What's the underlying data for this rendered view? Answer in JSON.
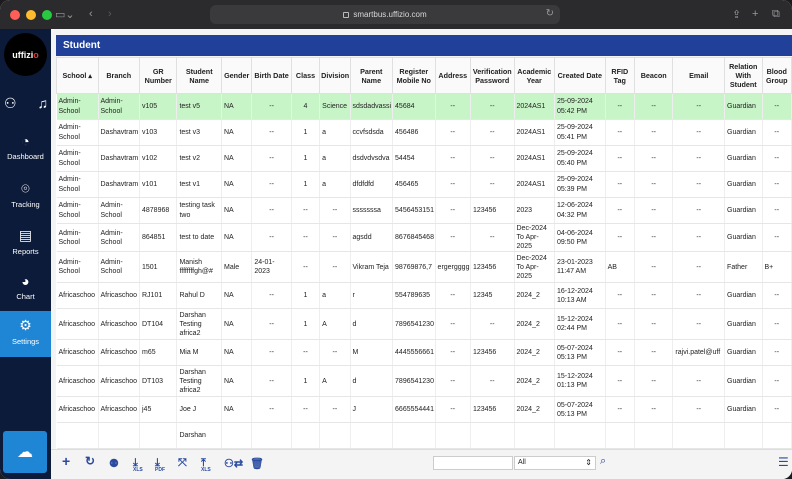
{
  "browser": {
    "url": "smartbus.uffizio.com"
  },
  "logo": {
    "text_main": "uffizi",
    "text_accent": "o"
  },
  "sidebar": {
    "items": [
      {
        "label": "Dashboard"
      },
      {
        "label": "Tracking"
      },
      {
        "label": "Reports"
      },
      {
        "label": "Chart"
      },
      {
        "label": "Settings"
      }
    ]
  },
  "panel": {
    "title": "Student"
  },
  "table": {
    "headers": [
      "School ▴",
      "Branch",
      "GR Number",
      "Student Name",
      "Gender",
      "Birth Date",
      "Class",
      "Division",
      "Parent Name",
      "Register Mobile No",
      "Address",
      "Verification Password",
      "Academic Year",
      "Created Date",
      "RFID Tag",
      "Beacon",
      "Email",
      "Relation With Student",
      "Blood Group"
    ],
    "rows": [
      [
        "Admin-School",
        "Admin-School",
        "v105",
        "test v5",
        "NA",
        "--",
        "4",
        "Science",
        "sdsdadvassi",
        "45684",
        "--",
        "--",
        "2024AS1",
        "25-09-2024 05:42 PM",
        "--",
        "--",
        "--",
        "Guardian",
        "--"
      ],
      [
        "Admin-School",
        "Dashavtram",
        "v103",
        "test v3",
        "NA",
        "--",
        "1",
        "a",
        "ccvfsdsda",
        "456486",
        "--",
        "--",
        "2024AS1",
        "25-09-2024 05:41 PM",
        "--",
        "--",
        "--",
        "Guardian",
        "--"
      ],
      [
        "Admin-School",
        "Dashavtram",
        "v102",
        "test v2",
        "NA",
        "--",
        "1",
        "a",
        "dsdvdvsdva",
        "54454",
        "--",
        "--",
        "2024AS1",
        "25-09-2024 05:40 PM",
        "--",
        "--",
        "--",
        "Guardian",
        "--"
      ],
      [
        "Admin-School",
        "Dashavtram",
        "v101",
        "test v1",
        "NA",
        "--",
        "1",
        "a",
        "dfdfdfd",
        "456465",
        "--",
        "--",
        "2024AS1",
        "25-09-2024 05:39 PM",
        "--",
        "--",
        "--",
        "Guardian",
        "--"
      ],
      [
        "Admin-School",
        "Admin-School",
        "4878968",
        "testing task two",
        "NA",
        "--",
        "--",
        "--",
        "sssssssa",
        "5456453151",
        "--",
        "123456",
        "2023",
        "12-06-2024 04:32 PM",
        "--",
        "--",
        "--",
        "Guardian",
        "--"
      ],
      [
        "Admin-School",
        "Admin-School",
        "864851",
        "test to date",
        "NA",
        "--",
        "--",
        "--",
        "agsdd",
        "8676845468",
        "--",
        "--",
        "Dec-2024 To Apr-2025",
        "04-06-2024 09:50 PM",
        "--",
        "--",
        "--",
        "Guardian",
        "--"
      ],
      [
        "Admin-School",
        "Admin-School",
        "1501",
        "Manish ffffffffgh@#",
        "Male",
        "24-01-2023",
        "--",
        "--",
        "Vikram Teja",
        "98769876,7",
        "ergergggg",
        "123456",
        "Dec-2024 To Apr-2025",
        "23-01-2023 11:47 AM",
        "AB",
        "--",
        "--",
        "Father",
        "B+"
      ],
      [
        "Africaschoo",
        "Africaschoo",
        "RJ101",
        "Rahul D",
        "NA",
        "--",
        "1",
        "a",
        "r",
        "554789635",
        "--",
        "12345",
        "2024_2",
        "16-12-2024 10:13 AM",
        "--",
        "--",
        "--",
        "Guardian",
        "--"
      ],
      [
        "Africaschoo",
        "Africaschoo",
        "DT104",
        "Darshan Testing africa2",
        "NA",
        "--",
        "1",
        "A",
        "d",
        "7896541230",
        "--",
        "--",
        "2024_2",
        "15-12-2024 02:44 PM",
        "--",
        "--",
        "--",
        "Guardian",
        "--"
      ],
      [
        "Africaschoo",
        "Africaschoo",
        "m65",
        "Mia M",
        "NA",
        "--",
        "--",
        "--",
        "M",
        "4445556661",
        "--",
        "123456",
        "2024_2",
        "05-07-2024 05:13 PM",
        "--",
        "--",
        "rajvi.patel@uff",
        "Guardian",
        "--"
      ],
      [
        "Africaschoo",
        "Africaschoo",
        "DT103",
        "Darshan Testing africa2",
        "NA",
        "--",
        "1",
        "A",
        "d",
        "7896541230",
        "--",
        "--",
        "2024_2",
        "15-12-2024 01:13 PM",
        "--",
        "--",
        "--",
        "Guardian",
        "--"
      ],
      [
        "Africaschoo",
        "Africaschoo",
        "j45",
        "Joe J",
        "NA",
        "--",
        "--",
        "--",
        "J",
        "6665554441",
        "--",
        "123456",
        "2024_2",
        "05-07-2024 05:13 PM",
        "--",
        "--",
        "--",
        "Guardian",
        "--"
      ],
      [
        "",
        "",
        "",
        "Darshan",
        "",
        "",
        "",
        "",
        "",
        "",
        "",
        "",
        "",
        "",
        "",
        "",
        "",
        "",
        ""
      ]
    ]
  },
  "toolbar": {
    "xls1": "XLS",
    "pdf": "PDF",
    "xls2": "XLS",
    "filter_value": "All"
  }
}
